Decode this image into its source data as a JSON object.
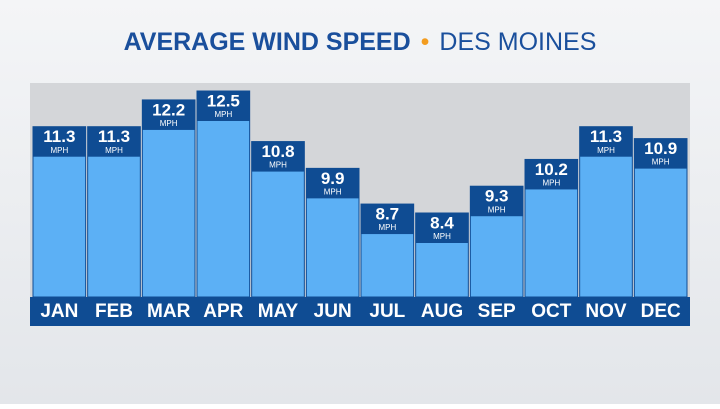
{
  "chart_data": {
    "type": "bar",
    "title": "AVERAGE WIND SPEED",
    "subtitle": "DES MOINES",
    "unit": "MPH",
    "categories": [
      "JAN",
      "FEB",
      "MAR",
      "APR",
      "MAY",
      "JUN",
      "JUL",
      "AUG",
      "SEP",
      "OCT",
      "NOV",
      "DEC"
    ],
    "values": [
      11.3,
      11.3,
      12.2,
      12.5,
      10.8,
      9.9,
      8.7,
      8.4,
      9.3,
      10.2,
      11.3,
      10.9
    ],
    "color": "#5cb0f5",
    "label_color": "#0f4c93"
  }
}
